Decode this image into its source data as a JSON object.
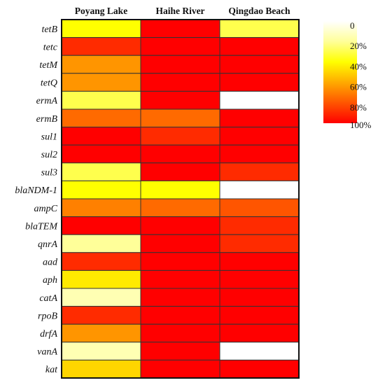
{
  "chart_data": {
    "type": "heatmap",
    "columns": [
      "Poyang Lake",
      "Haihe River",
      "Qingdao Beach"
    ],
    "rows": [
      "tetB",
      "tetc",
      "tetM",
      "tetQ",
      "ermA",
      "ermB",
      "sul1",
      "sul2",
      "sul3",
      "blaNDM-1",
      "ampC",
      "blaTEM",
      "qnrA",
      "aad",
      "aph",
      "catA",
      "rpoB",
      "drfA",
      "vanA",
      "kat"
    ],
    "values": [
      [
        40,
        100,
        30
      ],
      [
        90,
        100,
        100
      ],
      [
        65,
        100,
        100
      ],
      [
        65,
        100,
        100
      ],
      [
        30,
        100,
        0
      ],
      [
        75,
        75,
        100
      ],
      [
        100,
        90,
        100
      ],
      [
        100,
        100,
        100
      ],
      [
        30,
        100,
        90
      ],
      [
        40,
        40,
        0
      ],
      [
        70,
        75,
        80
      ],
      [
        100,
        100,
        90
      ],
      [
        20,
        100,
        90
      ],
      [
        90,
        100,
        100
      ],
      [
        45,
        100,
        100
      ],
      [
        15,
        100,
        100
      ],
      [
        90,
        100,
        100
      ],
      [
        65,
        100,
        100
      ],
      [
        15,
        100,
        0
      ],
      [
        50,
        100,
        100
      ]
    ],
    "legend": {
      "ticks": [
        0,
        20,
        40,
        60,
        80,
        100
      ],
      "tick_labels": [
        "0",
        "20%",
        "40%",
        "60%",
        "80%",
        "100%"
      ],
      "colors": [
        "#ffffff",
        "#ffff99",
        "#ffff00",
        "#ffaa00",
        "#ff5500",
        "#ff0000"
      ]
    }
  }
}
